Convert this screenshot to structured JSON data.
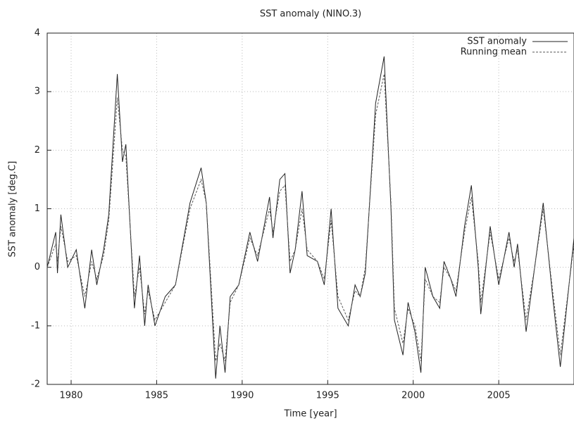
{
  "chart_data": {
    "type": "line",
    "title": "SST anomaly (NINO.3)",
    "x_label": "Time [year]",
    "y_label": "SST anomaly [deg.C]",
    "xlim": [
      1978.6,
      2009.4
    ],
    "xticks": [
      1980,
      1985,
      1990,
      1995,
      2000,
      2005
    ],
    "ylim": [
      -2,
      4
    ],
    "yticks": [
      -2,
      -1,
      0,
      1,
      2,
      3,
      4
    ],
    "grid": true,
    "legend": "top-right",
    "x": [
      1978.6,
      1979.1,
      1979.2,
      1979.4,
      1979.8,
      1980.3,
      1980.8,
      1981.2,
      1981.5,
      1981.9,
      1982.2,
      1982.7,
      1983.0,
      1983.2,
      1983.7,
      1984.0,
      1984.3,
      1984.5,
      1984.9,
      1985.5,
      1986.1,
      1986.95,
      1987.6,
      1987.9,
      1988.45,
      1988.7,
      1989.0,
      1989.3,
      1989.8,
      1990.45,
      1990.9,
      1991.6,
      1991.8,
      1992.2,
      1992.5,
      1992.8,
      1993.1,
      1993.5,
      1993.8,
      1994.4,
      1994.8,
      1995.2,
      1995.6,
      1996.2,
      1996.6,
      1996.9,
      1997.2,
      1997.8,
      1998.3,
      1998.7,
      1998.9,
      1999.4,
      1999.7,
      2000.1,
      2000.45,
      2000.7,
      2001.15,
      2001.55,
      2001.8,
      2002.2,
      2002.5,
      2003.0,
      2003.4,
      2003.8,
      2003.95,
      2004.5,
      2005.0,
      2005.6,
      2005.9,
      2006.1,
      2006.6,
      2007.1,
      2007.6,
      2008.15,
      2008.6,
      2009.4
    ],
    "series": [
      {
        "name": "SST anomaly",
        "color": "#222222",
        "dash": "solid",
        "values": [
          0,
          0.6,
          -0.1,
          0.9,
          0.0,
          0.3,
          -0.7,
          0.3,
          -0.3,
          0.3,
          0.9,
          3.3,
          1.8,
          2.1,
          -0.7,
          0.2,
          -1.0,
          -0.3,
          -1.0,
          -0.5,
          -0.3,
          1.1,
          1.7,
          1.1,
          -1.9,
          -1.0,
          -1.8,
          -0.5,
          -0.3,
          0.6,
          0.1,
          1.2,
          0.5,
          1.5,
          1.6,
          -0.1,
          0.3,
          1.3,
          0.2,
          0.1,
          -0.3,
          1.0,
          -0.7,
          -1.0,
          -0.3,
          -0.5,
          -0.1,
          2.8,
          3.6,
          1.0,
          -0.9,
          -1.5,
          -0.6,
          -1.1,
          -1.8,
          0.0,
          -0.5,
          -0.7,
          0.1,
          -0.2,
          -0.5,
          0.7,
          1.4,
          0.0,
          -0.8,
          0.7,
          -0.3,
          0.6,
          0.0,
          0.4,
          -1.1,
          0.0,
          1.1,
          -0.5,
          -1.7,
          0.5
        ]
      },
      {
        "name": "Running mean",
        "color": "#555555",
        "dash": "dashed",
        "values": [
          0,
          0.4,
          0.1,
          0.7,
          0.1,
          0.2,
          -0.5,
          0.1,
          -0.2,
          0.2,
          0.8,
          2.9,
          2.0,
          1.9,
          -0.5,
          0.0,
          -0.8,
          -0.4,
          -0.9,
          -0.6,
          -0.3,
          1.0,
          1.5,
          1.1,
          -1.6,
          -1.3,
          -1.6,
          -0.6,
          -0.3,
          0.5,
          0.2,
          1.0,
          0.6,
          1.3,
          1.4,
          0.1,
          0.3,
          1.0,
          0.3,
          0.1,
          -0.2,
          0.8,
          -0.5,
          -0.9,
          -0.4,
          -0.5,
          0.0,
          2.6,
          3.3,
          1.1,
          -0.7,
          -1.3,
          -0.7,
          -1.0,
          -1.6,
          -0.2,
          -0.5,
          -0.6,
          0.0,
          -0.2,
          -0.4,
          0.6,
          1.2,
          0.1,
          -0.6,
          0.6,
          -0.2,
          0.5,
          0.1,
          0.3,
          -0.9,
          0.0,
          1.0,
          -0.4,
          -1.5,
          0.4
        ]
      }
    ]
  }
}
